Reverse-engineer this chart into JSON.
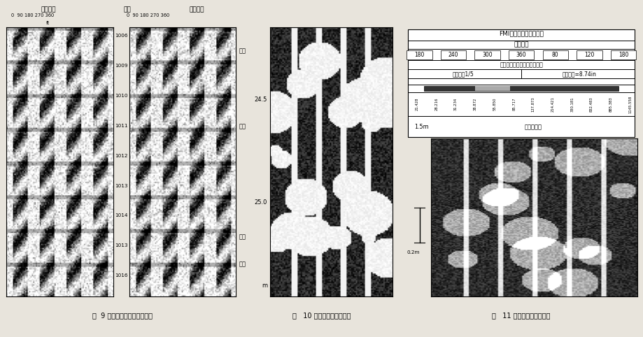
{
  "bg_color": "#e8e4dc",
  "fig_width": 9.2,
  "fig_height": 4.82,
  "fig9_title1": "方位图像",
  "fig9_title2": "深度",
  "fig9_title3": "裂缝迹线",
  "fig9_depths": [
    "1006",
    "1009",
    "1010",
    "1011",
    "1012",
    "1013",
    "1014",
    "1013",
    "1016"
  ],
  "fig9_caption": "图  9 层理面与裂缝的倾向相反",
  "fig10_scale_left": [
    "24.5",
    "25.0",
    "m"
  ],
  "fig10_caption": "图   10 白云岩中的孔洞孔隙",
  "fig11_title": "FMI图像（极板和翼板）",
  "fig11_subtitle": "图像方位",
  "fig11_azimuths": [
    "180",
    "240",
    "300",
    "360",
    "80",
    "120",
    "180"
  ],
  "fig11_color_note": "低电阻率，黑大高电阻率，白",
  "fig11_scale_note1": "水平比例1/5",
  "fig11_scale_note2": "钻头直径=8.74in",
  "fig11_conductivity": [
    "21.428",
    "28.216",
    "31.234",
    "38.872",
    "55.850",
    "85.717",
    "137.873",
    "214.421",
    "330.181",
    "832.483",
    "885.383",
    "1145.558"
  ],
  "fig11_conductivity_label": "电导率级别",
  "fig11_depth_label": "1.5m",
  "fig11_scale_bar": "0.2m",
  "fig11_caption": "图   11 碳酸盐岩中的缝合线"
}
